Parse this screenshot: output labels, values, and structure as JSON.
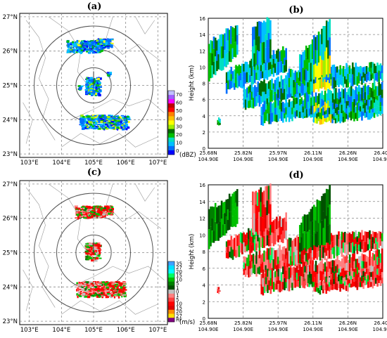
{
  "figure": {
    "panels": [
      {
        "id": "a",
        "title": "(a)"
      },
      {
        "id": "b",
        "title": "(b)"
      },
      {
        "id": "c",
        "title": "(c)"
      },
      {
        "id": "d",
        "title": "(d)"
      }
    ]
  },
  "colors": {
    "reflectivity_scale": [
      "#0000ff",
      "#0070ff",
      "#00c0ff",
      "#00e0c0",
      "#00c000",
      "#007000",
      "#a0f000",
      "#ffff00",
      "#ffc000",
      "#ff8000",
      "#ff0000",
      "#c00000",
      "#ff00ff",
      "#a060ff",
      "#c0c0ff"
    ],
    "velocity_scale": [
      "#40a0ff",
      "#00e0ff",
      "#00ffff",
      "#00ff60",
      "#00c000",
      "#008000",
      "#005000",
      "#c0c0c0",
      "#ff8080",
      "#ff4040",
      "#ff0000",
      "#e00000",
      "#ff8c00",
      "#ffe000",
      "#800080"
    ],
    "ring": "#555555",
    "grid": "#888888"
  },
  "chart_data": [
    {
      "type": "heatmap",
      "panel": "(a)",
      "x_ticks": [
        "103°E",
        "104°E",
        "105°E",
        "106°E",
        "107°E"
      ],
      "y_ticks": [
        "27°N",
        "26°N",
        "25°N",
        "24°N",
        "23°N"
      ],
      "xlim": [
        102.7,
        107.3
      ],
      "ylim": [
        22.9,
        27.1
      ],
      "radar_center": [
        105.0,
        25.0
      ],
      "range_rings_deg": [
        0.55,
        1.15,
        1.85
      ],
      "colorbar": {
        "unit": "(dBZ)",
        "ticks": [
          "70",
          "60",
          "50",
          "40",
          "30",
          "20",
          "10",
          "0"
        ],
        "values": [
          70,
          60,
          50,
          40,
          30,
          20,
          10,
          0
        ]
      }
    },
    {
      "type": "heatmap",
      "panel": "(b)",
      "ylabel": "Height (km)",
      "y_ticks": [
        "16",
        "14",
        "12",
        "10",
        "8",
        "6",
        "4",
        "2",
        "0"
      ],
      "ylim": [
        0,
        16
      ],
      "x_ticks": [
        {
          "lat": "25.68N",
          "lon": "104.90E"
        },
        {
          "lat": "25.82N",
          "lon": "104.90E"
        },
        {
          "lat": "25.97N",
          "lon": "104.90E"
        },
        {
          "lat": "26.11N",
          "lon": "104.90E"
        },
        {
          "lat": "26.26N",
          "lon": "104.90E"
        },
        {
          "lat": "26.40N",
          "lon": "104.90E"
        }
      ],
      "xlim": [
        25.68,
        26.4
      ],
      "grid": true
    },
    {
      "type": "heatmap",
      "panel": "(c)",
      "x_ticks": [
        "103°E",
        "104°E",
        "105°E",
        "106°E",
        "107°E"
      ],
      "y_ticks": [
        "27°N",
        "26°N",
        "25°N",
        "24°N",
        "23°N"
      ],
      "xlim": [
        102.7,
        107.3
      ],
      "ylim": [
        22.9,
        27.1
      ],
      "radar_center": [
        105.0,
        25.0
      ],
      "range_rings_deg": [
        0.55,
        1.15,
        1.85
      ],
      "colorbar": {
        "unit": "(m/s)",
        "ticks": [
          "35",
          "27",
          "20",
          "15",
          "10",
          "5",
          "1",
          "0",
          "1",
          "5",
          "10",
          "15",
          "20",
          "27",
          "RF"
        ]
      }
    },
    {
      "type": "heatmap",
      "panel": "(d)",
      "ylabel": "Height (km)",
      "y_ticks": [
        "16",
        "14",
        "12",
        "10",
        "8",
        "6",
        "4",
        "2",
        "0"
      ],
      "ylim": [
        0,
        16
      ],
      "x_ticks": [
        {
          "lat": "25.68N",
          "lon": "104.90E"
        },
        {
          "lat": "25.82N",
          "lon": "104.90E"
        },
        {
          "lat": "25.97N",
          "lon": "104.90E"
        },
        {
          "lat": "26.11N",
          "lon": "104.90E"
        },
        {
          "lat": "26.26N",
          "lon": "104.90E"
        },
        {
          "lat": "26.40N",
          "lon": "104.90E"
        }
      ],
      "xlim": [
        25.68,
        26.4
      ],
      "grid": true
    }
  ]
}
